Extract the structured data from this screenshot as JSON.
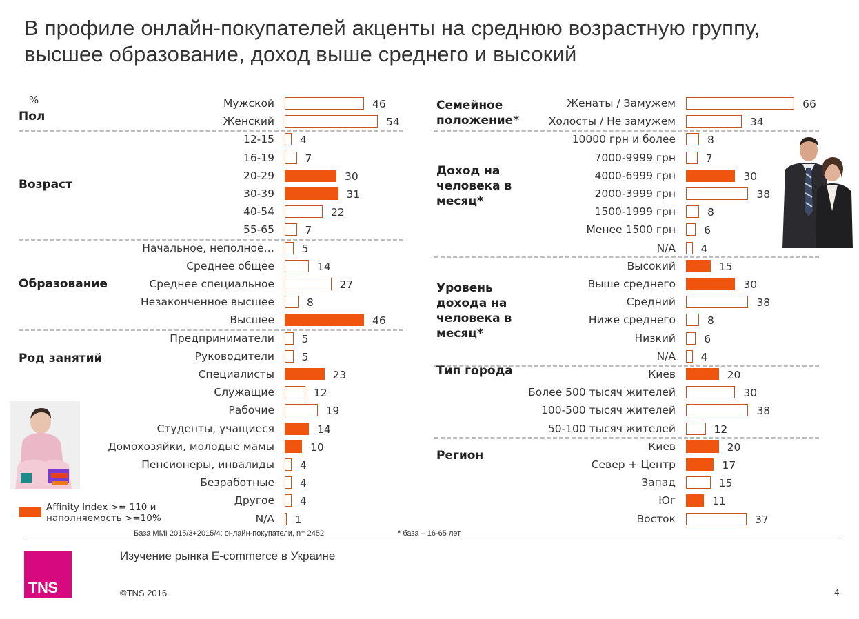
{
  "title": "В профиле онлайн-покупателей акценты на среднюю возрастную группу, высшее образование, доход  выше среднего и высокий",
  "unit_label": "%",
  "legend": {
    "highlight_color": "#f05510",
    "outline_color": "#c8531c",
    "text": "Affinity Index >= 110 и наполняемость >=10%"
  },
  "footer": {
    "base_note": "База MMI 2015/3+2015/4: онлайн-покупатели, n= 2452",
    "asterisk_note": "* база – 16-65 лет",
    "study_title": "Изучение рынка E-commerce в Украине",
    "copyright": "©TNS 2016",
    "page_number": "4",
    "logo_text": "TNS",
    "logo_color": "#d60a7e"
  },
  "chart_data": {
    "type": "bar",
    "orientation": "horizontal",
    "unit": "%",
    "panels": [
      {
        "name": "left",
        "groups": [
          {
            "label": "Пол",
            "items": [
              {
                "label": "Мужской",
                "value": 46,
                "highlight": false
              },
              {
                "label": "Женский",
                "value": 54,
                "highlight": false
              }
            ]
          },
          {
            "label": "Возраст",
            "items": [
              {
                "label": "12-15",
                "value": 4,
                "highlight": false
              },
              {
                "label": "16-19",
                "value": 7,
                "highlight": false
              },
              {
                "label": "20-29",
                "value": 30,
                "highlight": true
              },
              {
                "label": "30-39",
                "value": 31,
                "highlight": true
              },
              {
                "label": "40-54",
                "value": 22,
                "highlight": false
              },
              {
                "label": "55-65",
                "value": 7,
                "highlight": false
              }
            ]
          },
          {
            "label": "Образование",
            "items": [
              {
                "label": "Начальное, неполное…",
                "value": 5,
                "highlight": false
              },
              {
                "label": "Среднее общее",
                "value": 14,
                "highlight": false
              },
              {
                "label": "Среднее специальное",
                "value": 27,
                "highlight": false
              },
              {
                "label": "Незаконченное высшее",
                "value": 8,
                "highlight": false
              },
              {
                "label": "Высшее",
                "value": 46,
                "highlight": true
              }
            ]
          },
          {
            "label": "Род занятий",
            "items": [
              {
                "label": "Предприниматели",
                "value": 5,
                "highlight": false
              },
              {
                "label": "Руководители",
                "value": 5,
                "highlight": false
              },
              {
                "label": "Специалисты",
                "value": 23,
                "highlight": true
              },
              {
                "label": "Служащие",
                "value": 12,
                "highlight": false
              },
              {
                "label": "Рабочие",
                "value": 19,
                "highlight": false
              },
              {
                "label": "Студенты, учащиеся",
                "value": 14,
                "highlight": true
              },
              {
                "label": "Домохозяйки, молодые мамы",
                "value": 10,
                "highlight": true
              },
              {
                "label": "Пенсионеры, инвалиды",
                "value": 4,
                "highlight": false
              },
              {
                "label": "Безработные",
                "value": 4,
                "highlight": false
              },
              {
                "label": "Другое",
                "value": 4,
                "highlight": false
              },
              {
                "label": "N/A",
                "value": 1,
                "highlight": false
              }
            ]
          }
        ]
      },
      {
        "name": "right",
        "groups": [
          {
            "label": "Семейное положение*",
            "items": [
              {
                "label": "Женаты / Замужем",
                "value": 66,
                "highlight": false
              },
              {
                "label": "Холосты / Не замужем",
                "value": 34,
                "highlight": false
              }
            ]
          },
          {
            "label": "Доход на человека в месяц*",
            "items": [
              {
                "label": "10000 грн и более",
                "value": 8,
                "highlight": false
              },
              {
                "label": "7000-9999 грн",
                "value": 7,
                "highlight": false
              },
              {
                "label": "4000-6999 грн",
                "value": 30,
                "highlight": true
              },
              {
                "label": "2000-3999 грн",
                "value": 38,
                "highlight": false
              },
              {
                "label": "1500-1999 грн",
                "value": 8,
                "highlight": false
              },
              {
                "label": "Менее 1500 грн",
                "value": 6,
                "highlight": false
              },
              {
                "label": "N/A",
                "value": 4,
                "highlight": false
              }
            ]
          },
          {
            "label": "Уровень дохода на человека в месяц*",
            "items": [
              {
                "label": "Высокий",
                "value": 15,
                "highlight": true
              },
              {
                "label": "Выше среднего",
                "value": 30,
                "highlight": true
              },
              {
                "label": "Средний",
                "value": 38,
                "highlight": false
              },
              {
                "label": "Ниже среднего",
                "value": 8,
                "highlight": false
              },
              {
                "label": "Низкий",
                "value": 6,
                "highlight": false
              },
              {
                "label": "N/A",
                "value": 4,
                "highlight": false
              }
            ]
          },
          {
            "label": "Тип города",
            "items": [
              {
                "label": "Киев",
                "value": 20,
                "highlight": true
              },
              {
                "label": "Более 500 тысяч жителей",
                "value": 30,
                "highlight": false
              },
              {
                "label": "100-500 тысяч жителей",
                "value": 38,
                "highlight": false
              },
              {
                "label": "50-100 тысяч жителей",
                "value": 12,
                "highlight": false
              }
            ]
          },
          {
            "label": "Регион",
            "items": [
              {
                "label": "Киев",
                "value": 20,
                "highlight": true
              },
              {
                "label": "Север + Центр",
                "value": 17,
                "highlight": true
              },
              {
                "label": "Запад",
                "value": 15,
                "highlight": false
              },
              {
                "label": "Юг",
                "value": 11,
                "highlight": true
              },
              {
                "label": "Восток",
                "value": 37,
                "highlight": false
              }
            ]
          }
        ]
      }
    ]
  }
}
